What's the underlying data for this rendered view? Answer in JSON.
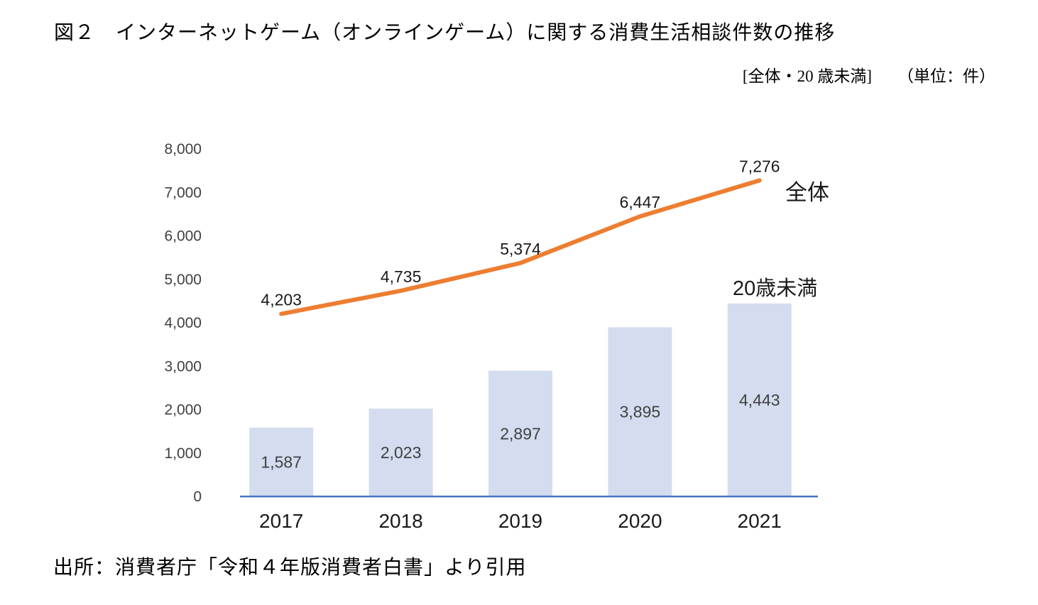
{
  "title": "図２　インターネットゲーム（オンラインゲーム）に関する消費生活相談件数の推移",
  "subtitle": {
    "series_note": "[全体・20 歳未満]",
    "unit_note": "（単位：件）"
  },
  "source": "出所：消費者庁「令和４年版消費者白書」より引用",
  "colors": {
    "bar_fill": "#d3ddef",
    "line_stroke": "#ed7d31",
    "axis_line": "#4472c4",
    "tick_text": "#404040",
    "label_text": "#1a1a1a"
  },
  "chart_data": {
    "type": "bar",
    "subtype": "bar-and-line-combo",
    "categories": [
      "2017",
      "2018",
      "2019",
      "2020",
      "2021"
    ],
    "series": [
      {
        "name": "全体",
        "type": "line",
        "color": "#ed7d31",
        "values": [
          4203,
          4735,
          5374,
          6447,
          7276
        ],
        "labels": [
          "4,203",
          "4,735",
          "5,374",
          "6,447",
          "7,276"
        ]
      },
      {
        "name": "20歳未満",
        "type": "bar",
        "color": "#d3ddef",
        "values": [
          1587,
          2023,
          2897,
          3895,
          4443
        ],
        "labels": [
          "1,587",
          "2,023",
          "2,897",
          "3,895",
          "4,443"
        ]
      }
    ],
    "title": "インターネットゲーム（オンラインゲーム）に関する消費生活相談件数の推移",
    "xlabel": "",
    "ylabel": "",
    "unit": "件",
    "ylim": [
      0,
      8000
    ],
    "ytick_step": 1000,
    "yticks": [
      "0",
      "1,000",
      "2,000",
      "3,000",
      "4,000",
      "5,000",
      "6,000",
      "7,000",
      "8,000"
    ],
    "grid": false,
    "legend_position": "inline-annotations"
  }
}
